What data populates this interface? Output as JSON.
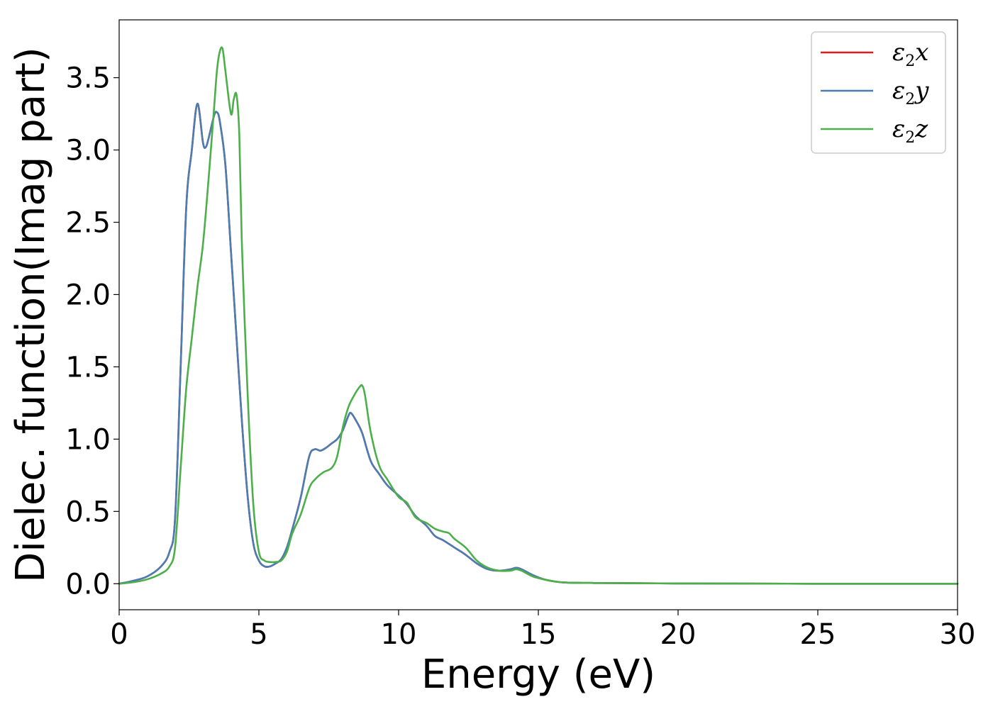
{
  "chart_data": {
    "type": "line",
    "xlabel": "Energy (eV)",
    "ylabel": "Dielec. function(Imag part)",
    "xlim": [
      0,
      30
    ],
    "ylim": [
      -0.18,
      3.9
    ],
    "xticks": [
      0,
      5,
      10,
      15,
      20,
      25,
      30
    ],
    "yticks": [
      0.0,
      0.5,
      1.0,
      1.5,
      2.0,
      2.5,
      3.0,
      3.5
    ],
    "xtick_labels": [
      "0",
      "5",
      "10",
      "15",
      "20",
      "25",
      "30"
    ],
    "ytick_labels": [
      "0.0",
      "0.5",
      "1.0",
      "1.5",
      "2.0",
      "2.5",
      "3.0",
      "3.5"
    ],
    "grid": false,
    "legend_position": "top-right",
    "series": [
      {
        "name": "ε2x",
        "symbol": "ε",
        "sub": "2",
        "axis": "x",
        "color": "#e41a1c",
        "x": [
          0,
          0.5,
          1.0,
          1.5,
          1.8,
          2.0,
          2.2,
          2.4,
          2.6,
          2.8,
          3.0,
          3.1,
          3.2,
          3.4,
          3.5,
          3.6,
          3.8,
          4.0,
          4.2,
          4.4,
          4.6,
          4.8,
          5.0,
          5.2,
          5.4,
          5.6,
          5.8,
          6.0,
          6.2,
          6.5,
          6.8,
          7.0,
          7.2,
          7.4,
          7.6,
          7.8,
          8.0,
          8.2,
          8.3,
          8.5,
          8.7,
          9.0,
          9.3,
          9.6,
          10.0,
          10.3,
          10.6,
          11.0,
          11.3,
          11.6,
          12.0,
          12.4,
          12.8,
          13.2,
          13.6,
          14.0,
          14.2,
          14.4,
          14.8,
          15.2,
          15.6,
          16.0,
          17.0,
          18.0,
          20.0,
          22.0,
          25.0,
          28.0,
          30.0
        ],
        "values": [
          0.0,
          0.02,
          0.05,
          0.12,
          0.22,
          0.45,
          1.5,
          2.6,
          3.0,
          3.32,
          3.05,
          3.02,
          3.08,
          3.24,
          3.26,
          3.2,
          2.9,
          2.3,
          1.7,
          1.1,
          0.6,
          0.28,
          0.16,
          0.12,
          0.12,
          0.14,
          0.17,
          0.25,
          0.38,
          0.6,
          0.88,
          0.93,
          0.92,
          0.94,
          0.97,
          1.0,
          1.06,
          1.16,
          1.18,
          1.12,
          1.04,
          0.85,
          0.76,
          0.68,
          0.61,
          0.55,
          0.47,
          0.4,
          0.33,
          0.3,
          0.25,
          0.2,
          0.14,
          0.1,
          0.09,
          0.1,
          0.11,
          0.1,
          0.06,
          0.03,
          0.015,
          0.008,
          0.005,
          0.004,
          0.002,
          0.001,
          0.0,
          0.0,
          0.0
        ]
      },
      {
        "name": "ε2y",
        "symbol": "ε",
        "sub": "2",
        "axis": "y",
        "color": "#4a7db3",
        "x": [
          0,
          0.5,
          1.0,
          1.5,
          1.8,
          2.0,
          2.2,
          2.4,
          2.6,
          2.8,
          3.0,
          3.1,
          3.2,
          3.4,
          3.5,
          3.6,
          3.8,
          4.0,
          4.2,
          4.4,
          4.6,
          4.8,
          5.0,
          5.2,
          5.4,
          5.6,
          5.8,
          6.0,
          6.2,
          6.5,
          6.8,
          7.0,
          7.2,
          7.4,
          7.6,
          7.8,
          8.0,
          8.2,
          8.3,
          8.5,
          8.7,
          9.0,
          9.3,
          9.6,
          10.0,
          10.3,
          10.6,
          11.0,
          11.3,
          11.6,
          12.0,
          12.4,
          12.8,
          13.2,
          13.6,
          14.0,
          14.2,
          14.4,
          14.8,
          15.2,
          15.6,
          16.0,
          17.0,
          18.0,
          20.0,
          22.0,
          25.0,
          28.0,
          30.0
        ],
        "values": [
          0.0,
          0.02,
          0.05,
          0.12,
          0.22,
          0.45,
          1.5,
          2.6,
          3.0,
          3.32,
          3.05,
          3.02,
          3.08,
          3.24,
          3.26,
          3.2,
          2.9,
          2.3,
          1.7,
          1.1,
          0.6,
          0.28,
          0.16,
          0.12,
          0.12,
          0.14,
          0.17,
          0.25,
          0.38,
          0.6,
          0.88,
          0.93,
          0.92,
          0.94,
          0.97,
          1.0,
          1.06,
          1.16,
          1.18,
          1.12,
          1.04,
          0.85,
          0.76,
          0.68,
          0.61,
          0.55,
          0.47,
          0.4,
          0.33,
          0.3,
          0.25,
          0.2,
          0.14,
          0.1,
          0.09,
          0.1,
          0.11,
          0.1,
          0.06,
          0.03,
          0.015,
          0.008,
          0.005,
          0.004,
          0.002,
          0.001,
          0.0,
          0.0,
          0.0
        ]
      },
      {
        "name": "ε2z",
        "symbol": "ε",
        "sub": "2",
        "axis": "z",
        "color": "#4daf4a",
        "x": [
          0,
          0.5,
          1.0,
          1.5,
          1.8,
          2.0,
          2.2,
          2.4,
          2.6,
          2.8,
          3.0,
          3.2,
          3.4,
          3.5,
          3.6,
          3.7,
          3.8,
          4.0,
          4.1,
          4.2,
          4.3,
          4.4,
          4.6,
          4.8,
          5.0,
          5.2,
          5.4,
          5.6,
          5.8,
          6.0,
          6.2,
          6.5,
          6.8,
          7.0,
          7.3,
          7.6,
          7.8,
          8.0,
          8.2,
          8.4,
          8.6,
          8.7,
          8.8,
          9.0,
          9.3,
          9.6,
          10.0,
          10.3,
          10.6,
          11.0,
          11.3,
          11.6,
          11.8,
          12.0,
          12.4,
          12.8,
          13.2,
          13.6,
          14.0,
          14.2,
          14.4,
          14.8,
          15.2,
          15.6,
          16.0,
          17.0,
          18.0,
          20.0,
          22.0,
          25.0,
          28.0,
          30.0
        ],
        "values": [
          0.0,
          0.01,
          0.03,
          0.07,
          0.12,
          0.25,
          0.8,
          1.35,
          1.7,
          2.05,
          2.35,
          2.8,
          3.3,
          3.55,
          3.68,
          3.7,
          3.55,
          3.25,
          3.35,
          3.38,
          3.1,
          2.3,
          1.3,
          0.55,
          0.22,
          0.16,
          0.15,
          0.15,
          0.16,
          0.22,
          0.35,
          0.48,
          0.66,
          0.72,
          0.77,
          0.8,
          0.88,
          1.08,
          1.22,
          1.3,
          1.36,
          1.37,
          1.3,
          1.05,
          0.82,
          0.72,
          0.6,
          0.56,
          0.46,
          0.42,
          0.38,
          0.36,
          0.35,
          0.31,
          0.25,
          0.16,
          0.11,
          0.09,
          0.09,
          0.1,
          0.09,
          0.05,
          0.03,
          0.015,
          0.008,
          0.005,
          0.004,
          0.002,
          0.001,
          0.0,
          0.0,
          0.0
        ]
      }
    ]
  }
}
